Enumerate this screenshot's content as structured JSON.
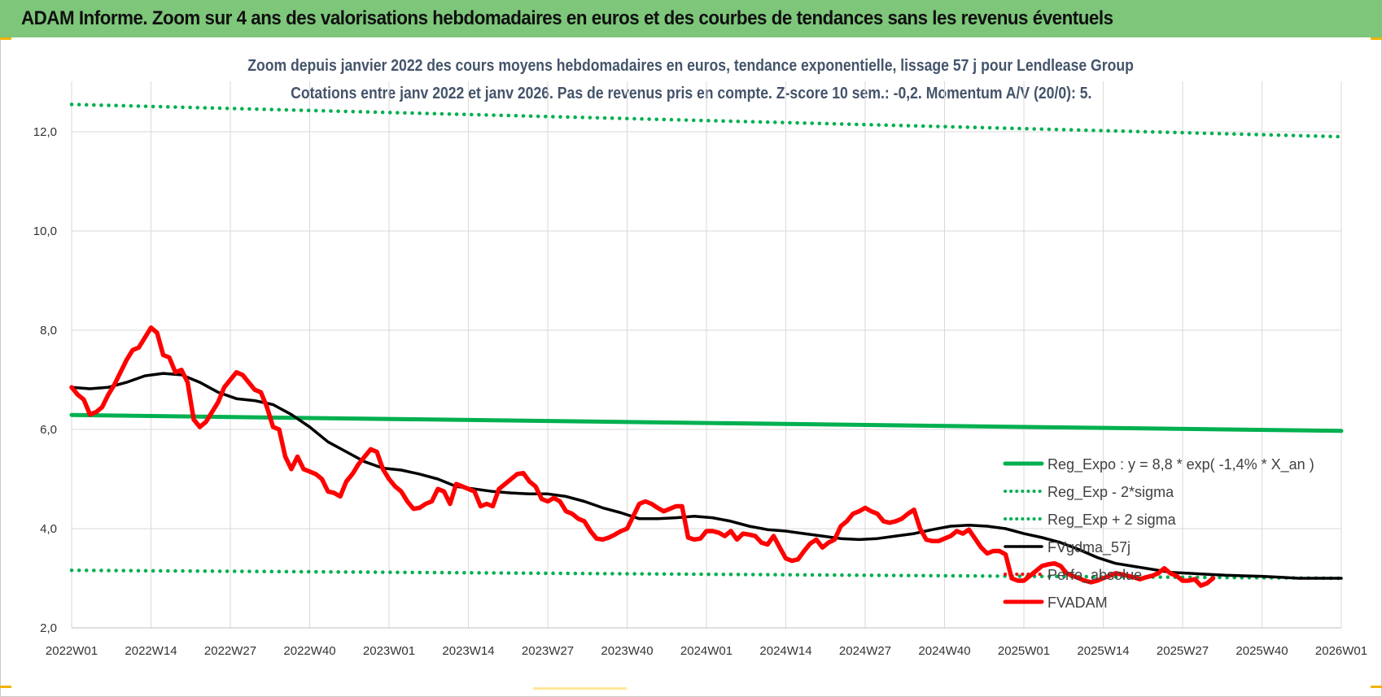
{
  "banner": {
    "title": "ADAM Informe. Zoom sur 4 ans des valorisations hebdomadaires en euros et des courbes de tendances sans les revenus éventuels",
    "color": "#7dc67a"
  },
  "chart_data": {
    "type": "line",
    "title": "Zoom depuis janvier 2022 des cours moyens hebdomadaires en euros, tendance exponentielle, lissage 57 j pour Lendlease Group",
    "subtitle": "Cotations entre janv 2022 et janv 2026. Pas de revenus pris en compte. Z-score 10 sem.: -0,2. Momentum A/V (20/0): 5.",
    "xlabel": "",
    "ylabel": "",
    "ylim": [
      2.0,
      12.0
    ],
    "yticks": [
      "2,0",
      "4,0",
      "6,0",
      "8,0",
      "10,0",
      "12,0"
    ],
    "ytick_values": [
      2,
      4,
      6,
      8,
      10,
      12
    ],
    "xticks": [
      "2022W01",
      "2022W14",
      "2022W27",
      "2022W40",
      "2023W01",
      "2023W14",
      "2023W27",
      "2023W40",
      "2024W01",
      "2024W14",
      "2024W27",
      "2024W40",
      "2025W01",
      "2025W14",
      "2025W27",
      "2025W40",
      "2026W01"
    ],
    "grid": true,
    "legend_position": "right",
    "series": [
      {
        "name": "Reg_Expo : y = 8,8 * exp( -1,4% *  X_an )",
        "color": "#00b050",
        "style": "solid",
        "points": [
          [
            0,
            6.29
          ],
          [
            208,
            5.97
          ]
        ]
      },
      {
        "name": "Reg_Exp - 2*sigma",
        "color": "#00b050",
        "style": "dotted",
        "points": [
          [
            0,
            3.16
          ],
          [
            208,
            3.0
          ]
        ]
      },
      {
        "name": "Reg_Exp + 2 sigma",
        "color": "#00b050",
        "style": "dotted",
        "points": [
          [
            0,
            12.55
          ],
          [
            208,
            11.9
          ]
        ]
      },
      {
        "name": "FVgdma_57j",
        "color": "#000000",
        "style": "solid",
        "points": [
          [
            0,
            6.85
          ],
          [
            3,
            6.82
          ],
          [
            6,
            6.85
          ],
          [
            9,
            6.95
          ],
          [
            12,
            7.08
          ],
          [
            15,
            7.13
          ],
          [
            18,
            7.1
          ],
          [
            21,
            6.95
          ],
          [
            24,
            6.75
          ],
          [
            27,
            6.62
          ],
          [
            30,
            6.58
          ],
          [
            33,
            6.5
          ],
          [
            36,
            6.3
          ],
          [
            39,
            6.05
          ],
          [
            42,
            5.75
          ],
          [
            45,
            5.55
          ],
          [
            48,
            5.35
          ],
          [
            51,
            5.22
          ],
          [
            54,
            5.18
          ],
          [
            57,
            5.1
          ],
          [
            60,
            5.0
          ],
          [
            63,
            4.85
          ],
          [
            66,
            4.8
          ],
          [
            69,
            4.75
          ],
          [
            72,
            4.72
          ],
          [
            75,
            4.7
          ],
          [
            78,
            4.7
          ],
          [
            81,
            4.65
          ],
          [
            84,
            4.55
          ],
          [
            87,
            4.42
          ],
          [
            90,
            4.32
          ],
          [
            93,
            4.2
          ],
          [
            96,
            4.2
          ],
          [
            99,
            4.22
          ],
          [
            102,
            4.25
          ],
          [
            105,
            4.22
          ],
          [
            108,
            4.15
          ],
          [
            111,
            4.05
          ],
          [
            114,
            3.98
          ],
          [
            117,
            3.95
          ],
          [
            120,
            3.9
          ],
          [
            123,
            3.85
          ],
          [
            126,
            3.8
          ],
          [
            129,
            3.78
          ],
          [
            132,
            3.8
          ],
          [
            135,
            3.85
          ],
          [
            138,
            3.9
          ],
          [
            141,
            3.98
          ],
          [
            144,
            4.05
          ],
          [
            147,
            4.07
          ],
          [
            150,
            4.05
          ],
          [
            153,
            4.0
          ],
          [
            156,
            3.9
          ],
          [
            159,
            3.82
          ],
          [
            162,
            3.72
          ],
          [
            165,
            3.58
          ],
          [
            168,
            3.42
          ],
          [
            171,
            3.3
          ],
          [
            174,
            3.24
          ],
          [
            177,
            3.18
          ],
          [
            180,
            3.12
          ],
          [
            183,
            3.1
          ],
          [
            186,
            3.08
          ],
          [
            189,
            3.06
          ],
          [
            192,
            3.05
          ],
          [
            195,
            3.04
          ],
          [
            198,
            3.02
          ],
          [
            201,
            3.0
          ],
          [
            204,
            3.0
          ],
          [
            208,
            3.0
          ]
        ]
      },
      {
        "name": "Perfo_absolue",
        "color": "#ff0000",
        "style": "dotted",
        "points": []
      },
      {
        "name": "FVADAM",
        "color": "#ff0000",
        "style": "solid",
        "points": [
          [
            0,
            6.85
          ],
          [
            1,
            6.7
          ],
          [
            2,
            6.6
          ],
          [
            3,
            6.3
          ],
          [
            4,
            6.35
          ],
          [
            5,
            6.45
          ],
          [
            6,
            6.7
          ],
          [
            7,
            6.9
          ],
          [
            8,
            7.15
          ],
          [
            9,
            7.4
          ],
          [
            10,
            7.6
          ],
          [
            11,
            7.65
          ],
          [
            12,
            7.85
          ],
          [
            13,
            8.05
          ],
          [
            14,
            7.95
          ],
          [
            15,
            7.5
          ],
          [
            16,
            7.45
          ],
          [
            17,
            7.15
          ],
          [
            18,
            7.2
          ],
          [
            19,
            6.95
          ],
          [
            20,
            6.2
          ],
          [
            21,
            6.05
          ],
          [
            22,
            6.15
          ],
          [
            23,
            6.35
          ],
          [
            24,
            6.55
          ],
          [
            25,
            6.85
          ],
          [
            26,
            7.0
          ],
          [
            27,
            7.15
          ],
          [
            28,
            7.1
          ],
          [
            29,
            6.95
          ],
          [
            30,
            6.8
          ],
          [
            31,
            6.75
          ],
          [
            32,
            6.45
          ],
          [
            33,
            6.05
          ],
          [
            34,
            6.0
          ],
          [
            35,
            5.45
          ],
          [
            36,
            5.2
          ],
          [
            37,
            5.45
          ],
          [
            38,
            5.2
          ],
          [
            39,
            5.15
          ],
          [
            40,
            5.1
          ],
          [
            41,
            5.0
          ],
          [
            42,
            4.75
          ],
          [
            43,
            4.72
          ],
          [
            44,
            4.65
          ],
          [
            45,
            4.95
          ],
          [
            46,
            5.1
          ],
          [
            47,
            5.3
          ],
          [
            48,
            5.45
          ],
          [
            49,
            5.6
          ],
          [
            50,
            5.55
          ],
          [
            51,
            5.2
          ],
          [
            52,
            5.0
          ],
          [
            53,
            4.85
          ],
          [
            54,
            4.75
          ],
          [
            55,
            4.55
          ],
          [
            56,
            4.4
          ],
          [
            57,
            4.42
          ],
          [
            58,
            4.5
          ],
          [
            59,
            4.55
          ],
          [
            60,
            4.8
          ],
          [
            61,
            4.75
          ],
          [
            62,
            4.5
          ],
          [
            63,
            4.9
          ],
          [
            64,
            4.85
          ],
          [
            65,
            4.8
          ],
          [
            66,
            4.75
          ],
          [
            67,
            4.45
          ],
          [
            68,
            4.5
          ],
          [
            69,
            4.45
          ],
          [
            70,
            4.8
          ],
          [
            71,
            4.9
          ],
          [
            72,
            5.0
          ],
          [
            73,
            5.1
          ],
          [
            74,
            5.12
          ],
          [
            75,
            4.95
          ],
          [
            76,
            4.85
          ],
          [
            77,
            4.6
          ],
          [
            78,
            4.55
          ],
          [
            79,
            4.62
          ],
          [
            80,
            4.55
          ],
          [
            81,
            4.35
          ],
          [
            82,
            4.3
          ],
          [
            83,
            4.2
          ],
          [
            84,
            4.15
          ],
          [
            85,
            3.95
          ],
          [
            86,
            3.8
          ],
          [
            87,
            3.78
          ],
          [
            88,
            3.82
          ],
          [
            89,
            3.88
          ],
          [
            90,
            3.95
          ],
          [
            91,
            4.0
          ],
          [
            92,
            4.25
          ],
          [
            93,
            4.5
          ],
          [
            94,
            4.55
          ],
          [
            95,
            4.5
          ],
          [
            96,
            4.42
          ],
          [
            97,
            4.35
          ],
          [
            98,
            4.4
          ],
          [
            99,
            4.45
          ],
          [
            100,
            4.45
          ],
          [
            101,
            3.82
          ],
          [
            102,
            3.78
          ],
          [
            103,
            3.8
          ],
          [
            104,
            3.95
          ],
          [
            105,
            3.95
          ],
          [
            106,
            3.92
          ],
          [
            107,
            3.85
          ],
          [
            108,
            3.95
          ],
          [
            109,
            3.78
          ],
          [
            110,
            3.9
          ],
          [
            111,
            3.88
          ],
          [
            112,
            3.85
          ],
          [
            113,
            3.72
          ],
          [
            114,
            3.68
          ],
          [
            115,
            3.85
          ],
          [
            116,
            3.62
          ],
          [
            117,
            3.4
          ],
          [
            118,
            3.35
          ],
          [
            119,
            3.38
          ],
          [
            120,
            3.55
          ],
          [
            121,
            3.7
          ],
          [
            122,
            3.78
          ],
          [
            123,
            3.62
          ],
          [
            124,
            3.72
          ],
          [
            125,
            3.78
          ],
          [
            126,
            4.05
          ],
          [
            127,
            4.15
          ],
          [
            128,
            4.3
          ],
          [
            129,
            4.35
          ],
          [
            130,
            4.42
          ],
          [
            131,
            4.35
          ],
          [
            132,
            4.3
          ],
          [
            133,
            4.15
          ],
          [
            134,
            4.12
          ],
          [
            135,
            4.15
          ],
          [
            136,
            4.2
          ],
          [
            137,
            4.3
          ],
          [
            138,
            4.38
          ],
          [
            139,
            4.0
          ],
          [
            140,
            3.78
          ],
          [
            141,
            3.75
          ],
          [
            142,
            3.75
          ],
          [
            143,
            3.8
          ],
          [
            144,
            3.85
          ],
          [
            145,
            3.95
          ],
          [
            146,
            3.9
          ],
          [
            147,
            3.98
          ],
          [
            148,
            3.8
          ],
          [
            149,
            3.62
          ],
          [
            150,
            3.5
          ],
          [
            151,
            3.55
          ],
          [
            152,
            3.55
          ],
          [
            153,
            3.48
          ],
          [
            154,
            3.0
          ],
          [
            155,
            2.95
          ],
          [
            156,
            2.95
          ],
          [
            157,
            3.05
          ],
          [
            158,
            3.15
          ],
          [
            159,
            3.25
          ],
          [
            160,
            3.28
          ],
          [
            161,
            3.3
          ],
          [
            162,
            3.25
          ],
          [
            163,
            3.1
          ],
          [
            164,
            3.05
          ],
          [
            165,
            3.0
          ],
          [
            166,
            2.95
          ],
          [
            167,
            2.92
          ],
          [
            168,
            2.95
          ],
          [
            169,
            3.0
          ],
          [
            170,
            3.05
          ],
          [
            171,
            3.1
          ],
          [
            172,
            3.08
          ],
          [
            173,
            3.05
          ],
          [
            174,
            3.02
          ],
          [
            175,
            2.98
          ],
          [
            176,
            3.02
          ],
          [
            177,
            3.05
          ],
          [
            178,
            3.1
          ],
          [
            179,
            3.2
          ],
          [
            180,
            3.1
          ],
          [
            181,
            3.05
          ],
          [
            182,
            2.95
          ],
          [
            183,
            2.95
          ],
          [
            184,
            2.98
          ],
          [
            185,
            2.85
          ],
          [
            186,
            2.9
          ],
          [
            187,
            3.0
          ]
        ]
      }
    ]
  }
}
